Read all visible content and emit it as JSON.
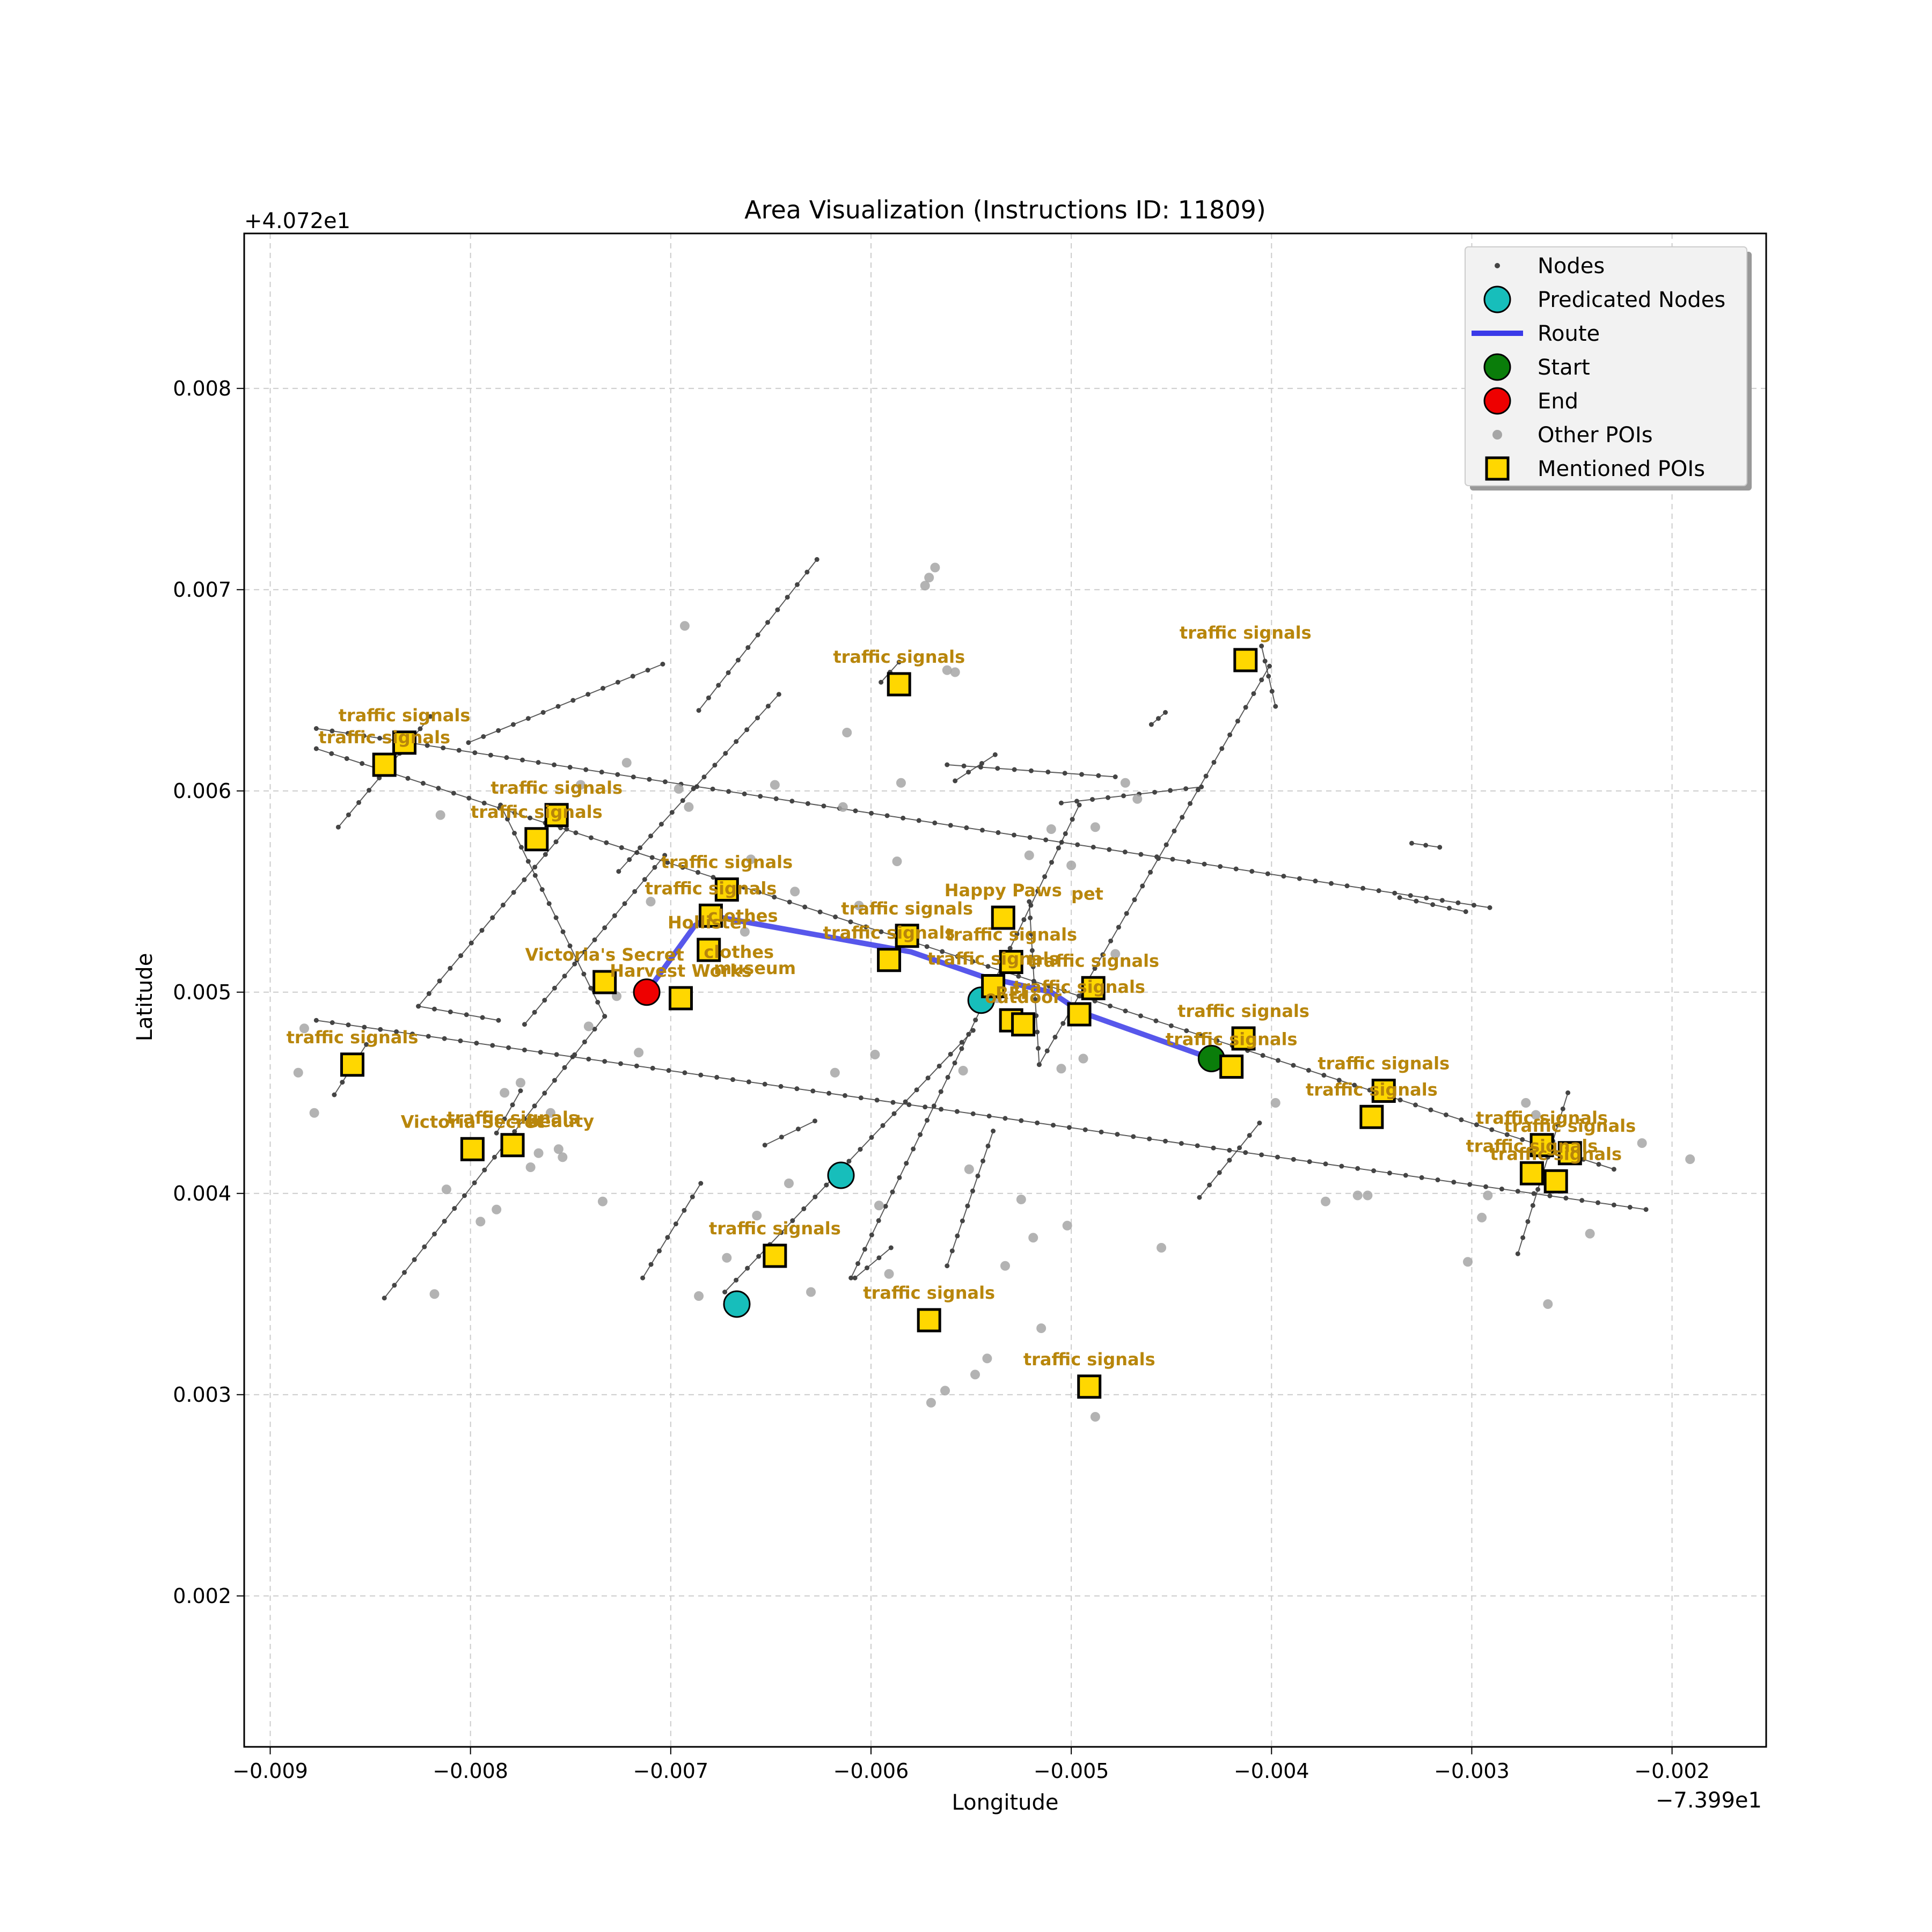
{
  "chart_data": {
    "type": "scatter",
    "title": "Area Visualization (Instructions ID: 11809)",
    "xlabel": "Longitude",
    "ylabel": "Latitude",
    "x_offset_label": "−7.399e1",
    "y_offset_label": "+4.072e1",
    "xlim": [
      -0.00913,
      -0.00153
    ],
    "ylim": [
      0.00125,
      0.00877
    ],
    "x_ticks": [
      -0.009,
      -0.008,
      -0.007,
      -0.006,
      -0.005,
      -0.004,
      -0.003,
      -0.002
    ],
    "x_tick_labels": [
      "−0.009",
      "−0.008",
      "−0.007",
      "−0.006",
      "−0.005",
      "−0.004",
      "−0.003",
      "−0.002"
    ],
    "y_ticks": [
      0.002,
      0.003,
      0.004,
      0.005,
      0.006,
      0.007,
      0.008
    ],
    "y_tick_labels": [
      "0.002",
      "0.003",
      "0.004",
      "0.005",
      "0.006",
      "0.007",
      "0.008"
    ],
    "grid": true,
    "legend": {
      "position": "top-right",
      "entries": [
        {
          "key": "nodes",
          "label": "Nodes"
        },
        {
          "key": "predicated",
          "label": "Predicated Nodes"
        },
        {
          "key": "route",
          "label": "Route"
        },
        {
          "key": "start",
          "label": "Start"
        },
        {
          "key": "end",
          "label": "End"
        },
        {
          "key": "other_pois",
          "label": "Other POIs"
        },
        {
          "key": "mentioned",
          "label": "Mentioned POIs"
        }
      ]
    },
    "colors": {
      "nodes": "#444444",
      "road": "#333333",
      "predicated": "#17bebb",
      "route": "#3a3ae8",
      "start": "#0a7d0a",
      "end": "#ee0000",
      "other_pois": "#a6a6a6",
      "mentioned": "#ffd700",
      "poi_label": "#b8860b",
      "grid": "#cccccc"
    },
    "roads": [
      [
        [
          -0.00877,
          0.00631
        ],
        [
          -0.00291,
          0.00542
        ]
      ],
      [
        [
          -0.00877,
          0.00621
        ],
        [
          -0.00229,
          0.00412
        ]
      ],
      [
        [
          -0.00877,
          0.00486
        ],
        [
          -0.00213,
          0.00392
        ]
      ],
      [
        [
          -0.00866,
          0.00582
        ],
        [
          -0.0082,
          0.00637
        ]
      ],
      [
        [
          -0.00843,
          0.00348
        ],
        [
          -0.00733,
          0.00488
        ]
      ],
      [
        [
          -0.00733,
          0.00488
        ],
        [
          -0.00785,
          0.00593
        ]
      ],
      [
        [
          -0.00868,
          0.00449
        ],
        [
          -0.00852,
          0.00474
        ]
      ],
      [
        [
          -0.00826,
          0.00493
        ],
        [
          -0.00752,
          0.00581
        ]
      ],
      [
        [
          -0.00787,
          0.0043
        ],
        [
          -0.00775,
          0.00451
        ]
      ],
      [
        [
          -0.00826,
          0.00493
        ],
        [
          -0.00786,
          0.00486
        ]
      ],
      [
        [
          -0.00726,
          0.0056
        ],
        [
          -0.00646,
          0.00648
        ]
      ],
      [
        [
          -0.00686,
          0.0064
        ],
        [
          -0.00627,
          0.00715
        ]
      ],
      [
        [
          -0.00773,
          0.00484
        ],
        [
          -0.00703,
          0.00568
        ]
      ],
      [
        [
          -0.00801,
          0.00624
        ],
        [
          -0.00704,
          0.00663
        ]
      ],
      [
        [
          -0.00673,
          0.00351
        ],
        [
          -0.00549,
          0.00481
        ]
      ],
      [
        [
          -0.00714,
          0.00358
        ],
        [
          -0.00685,
          0.00405
        ]
      ],
      [
        [
          -0.00653,
          0.00424
        ],
        [
          -0.00628,
          0.00436
        ]
      ],
      [
        [
          -0.0061,
          0.00358
        ],
        [
          -0.00496,
          0.00593
        ]
      ],
      [
        [
          -0.00608,
          0.00358
        ],
        [
          -0.0059,
          0.00373
        ]
      ],
      [
        [
          -0.00562,
          0.00364
        ],
        [
          -0.00539,
          0.00431
        ]
      ],
      [
        [
          -0.00516,
          0.00464
        ],
        [
          -0.00401,
          0.00662
        ]
      ],
      [
        [
          -0.00436,
          0.00398
        ],
        [
          -0.00406,
          0.00435
        ]
      ],
      [
        [
          -0.00516,
          0.00464
        ],
        [
          -0.00521,
          0.00545
        ]
      ],
      [
        [
          -0.00562,
          0.00613
        ],
        [
          -0.00478,
          0.00607
        ]
      ],
      [
        [
          -0.00558,
          0.00605
        ],
        [
          -0.00538,
          0.00618
        ]
      ],
      [
        [
          -0.00595,
          0.00654
        ],
        [
          -0.00586,
          0.00664
        ]
      ],
      [
        [
          -0.00505,
          0.00594
        ],
        [
          -0.00435,
          0.00602
        ]
      ],
      [
        [
          -0.00405,
          0.00672
        ],
        [
          -0.00398,
          0.00642
        ]
      ],
      [
        [
          -0.0046,
          0.00633
        ],
        [
          -0.00453,
          0.00639
        ]
      ],
      [
        [
          -0.00336,
          0.00547
        ],
        [
          -0.00303,
          0.0054
        ]
      ],
      [
        [
          -0.0033,
          0.00574
        ],
        [
          -0.00316,
          0.00572
        ]
      ],
      [
        [
          -0.00277,
          0.0037
        ],
        [
          -0.00252,
          0.0045
        ]
      ]
    ],
    "route": [
      [
        -0.00712,
        0.005
      ],
      [
        -0.00688,
        0.00533
      ],
      [
        -0.0068,
        0.00538
      ],
      [
        -0.0058,
        0.0052
      ],
      [
        -0.00545,
        0.00508
      ],
      [
        -0.0051,
        0.005
      ],
      [
        -0.00495,
        0.0049
      ],
      [
        -0.0043,
        0.00467
      ]
    ],
    "start": {
      "x": -0.0043,
      "y": 0.00467
    },
    "end": {
      "x": -0.00712,
      "y": 0.005
    },
    "predicated_nodes": [
      {
        "x": -0.00545,
        "y": 0.00496
      },
      {
        "x": -0.00615,
        "y": 0.00409
      },
      {
        "x": -0.00667,
        "y": 0.00345
      }
    ],
    "other_pois": [
      [
        -0.00883,
        0.00482
      ],
      [
        -0.00886,
        0.0046
      ],
      [
        -0.00878,
        0.0044
      ],
      [
        -0.00818,
        0.0035
      ],
      [
        -0.00815,
        0.00588
      ],
      [
        -0.00812,
        0.00402
      ],
      [
        -0.00795,
        0.00386
      ],
      [
        -0.00787,
        0.00392
      ],
      [
        -0.00783,
        0.0045
      ],
      [
        -0.00775,
        0.00455
      ],
      [
        -0.0077,
        0.00413
      ],
      [
        -0.00766,
        0.0042
      ],
      [
        -0.0076,
        0.0044
      ],
      [
        -0.00756,
        0.00422
      ],
      [
        -0.00754,
        0.00418
      ],
      [
        -0.00745,
        0.00603
      ],
      [
        -0.00741,
        0.00483
      ],
      [
        -0.00734,
        0.00396
      ],
      [
        -0.00727,
        0.00498
      ],
      [
        -0.00722,
        0.00614
      ],
      [
        -0.00716,
        0.0047
      ],
      [
        -0.0071,
        0.00545
      ],
      [
        -0.00696,
        0.00601
      ],
      [
        -0.00693,
        0.00682
      ],
      [
        -0.00691,
        0.00592
      ],
      [
        -0.00686,
        0.00349
      ],
      [
        -0.00672,
        0.00368
      ],
      [
        -0.00663,
        0.0053
      ],
      [
        -0.0066,
        0.00566
      ],
      [
        -0.00657,
        0.00389
      ],
      [
        -0.00648,
        0.00603
      ],
      [
        -0.00641,
        0.00405
      ],
      [
        -0.00638,
        0.0055
      ],
      [
        -0.0063,
        0.00351
      ],
      [
        -0.00618,
        0.0046
      ],
      [
        -0.00614,
        0.00592
      ],
      [
        -0.00612,
        0.00629
      ],
      [
        -0.00606,
        0.00543
      ],
      [
        -0.00598,
        0.00469
      ],
      [
        -0.00596,
        0.00394
      ],
      [
        -0.00591,
        0.0036
      ],
      [
        -0.00587,
        0.00565
      ],
      [
        -0.00585,
        0.00604
      ],
      [
        -0.00573,
        0.00702
      ],
      [
        -0.00571,
        0.00706
      ],
      [
        -0.00568,
        0.00711
      ],
      [
        -0.00562,
        0.0066
      ],
      [
        -0.00558,
        0.00659
      ],
      [
        -0.00554,
        0.00461
      ],
      [
        -0.00551,
        0.00412
      ],
      [
        -0.00542,
        0.00318
      ],
      [
        -0.00537,
        0.00497
      ],
      [
        -0.00533,
        0.00364
      ],
      [
        -0.00525,
        0.00397
      ],
      [
        -0.00521,
        0.00568
      ],
      [
        -0.00519,
        0.00378
      ],
      [
        -0.00515,
        0.00333
      ],
      [
        -0.0051,
        0.00581
      ],
      [
        -0.00505,
        0.00462
      ],
      [
        -0.00502,
        0.00384
      ],
      [
        -0.005,
        0.00563
      ],
      [
        -0.00494,
        0.00467
      ],
      [
        -0.00488,
        0.00582
      ],
      [
        -0.00478,
        0.00519
      ],
      [
        -0.00473,
        0.00604
      ],
      [
        -0.00467,
        0.00596
      ],
      [
        -0.00455,
        0.00373
      ],
      [
        -0.00423,
        0.0046
      ],
      [
        -0.00398,
        0.00445
      ],
      [
        -0.00373,
        0.00396
      ],
      [
        -0.00357,
        0.00399
      ],
      [
        -0.00352,
        0.00399
      ],
      [
        -0.00302,
        0.00366
      ],
      [
        -0.00295,
        0.00388
      ],
      [
        -0.00292,
        0.00399
      ],
      [
        -0.00273,
        0.00445
      ],
      [
        -0.00268,
        0.00439
      ],
      [
        -0.00262,
        0.00345
      ],
      [
        -0.00241,
        0.0038
      ],
      [
        -0.00215,
        0.00425
      ],
      [
        -0.00191,
        0.00417
      ],
      [
        -0.0057,
        0.00296
      ],
      [
        -0.00563,
        0.00302
      ],
      [
        -0.00548,
        0.0031
      ],
      [
        -0.00488,
        0.00289
      ]
    ],
    "mentioned_pois": [
      {
        "x": -0.00833,
        "y": 0.00624,
        "label": "traffic signals"
      },
      {
        "x": -0.00843,
        "y": 0.00613,
        "label": "traffic signals"
      },
      {
        "x": -0.00757,
        "y": 0.00588,
        "label": "traffic signals"
      },
      {
        "x": -0.00767,
        "y": 0.00576,
        "label": "traffic signals"
      },
      {
        "x": -0.00672,
        "y": 0.00551,
        "label": "traffic signals"
      },
      {
        "x": -0.0068,
        "y": 0.00538,
        "label": "traffic signals"
      },
      {
        "x": -0.00681,
        "y": 0.00521,
        "label": "Hollister"
      },
      {
        "x": -0.00733,
        "y": 0.00505,
        "label": "Victoria's Secret"
      },
      {
        "x": -0.00695,
        "y": 0.00497,
        "label": "Harvest Works"
      },
      {
        "x": -0.00586,
        "y": 0.00653,
        "label": "traffic signals"
      },
      {
        "x": -0.00582,
        "y": 0.00528,
        "label": "traffic signals"
      },
      {
        "x": -0.00591,
        "y": 0.00516,
        "label": "traffic signals"
      },
      {
        "x": -0.00534,
        "y": 0.00537,
        "label": "Happy Paws"
      },
      {
        "x": -0.0053,
        "y": 0.00515,
        "label": "traffic signals"
      },
      {
        "x": -0.00539,
        "y": 0.00503,
        "label": "traffic signals"
      },
      {
        "x": -0.00489,
        "y": 0.00502,
        "label": "traffic signals"
      },
      {
        "x": -0.0053,
        "y": 0.00486,
        "label": "REI"
      },
      {
        "x": -0.00524,
        "y": 0.00484,
        "label": "outdoor"
      },
      {
        "x": -0.00496,
        "y": 0.00489,
        "label": "traffic signals"
      },
      {
        "x": -0.00413,
        "y": 0.00665,
        "label": "traffic signals"
      },
      {
        "x": -0.00414,
        "y": 0.00477,
        "label": "traffic signals"
      },
      {
        "x": -0.0042,
        "y": 0.00463,
        "label": "traffic signals"
      },
      {
        "x": -0.00344,
        "y": 0.00451,
        "label": "traffic signals"
      },
      {
        "x": -0.0035,
        "y": 0.00438,
        "label": "traffic signals"
      },
      {
        "x": -0.00265,
        "y": 0.00424,
        "label": "traffic signals"
      },
      {
        "x": -0.00251,
        "y": 0.0042,
        "label": "traffic signals"
      },
      {
        "x": -0.0027,
        "y": 0.0041,
        "label": "traffic signals"
      },
      {
        "x": -0.00258,
        "y": 0.00406,
        "label": "traffic signals"
      },
      {
        "x": -0.00859,
        "y": 0.00464,
        "label": "traffic signals"
      },
      {
        "x": -0.00799,
        "y": 0.00422,
        "label": "Victoria Secret"
      },
      {
        "x": -0.00779,
        "y": 0.00424,
        "label": "traffic signals"
      },
      {
        "x": -0.00648,
        "y": 0.00369,
        "label": "traffic signals"
      },
      {
        "x": -0.00571,
        "y": 0.00337,
        "label": "traffic signals"
      },
      {
        "x": -0.00491,
        "y": 0.00304,
        "label": "traffic signals"
      }
    ],
    "extra_labels": [
      {
        "x": -0.00664,
        "y": 0.00535,
        "text": "clothes"
      },
      {
        "x": -0.00666,
        "y": 0.00517,
        "text": "clothes"
      },
      {
        "x": -0.00658,
        "y": 0.00509,
        "text": "museum"
      },
      {
        "x": -0.00492,
        "y": 0.00546,
        "text": "pet"
      },
      {
        "x": -0.00755,
        "y": 0.00433,
        "text": "beauty"
      }
    ]
  }
}
